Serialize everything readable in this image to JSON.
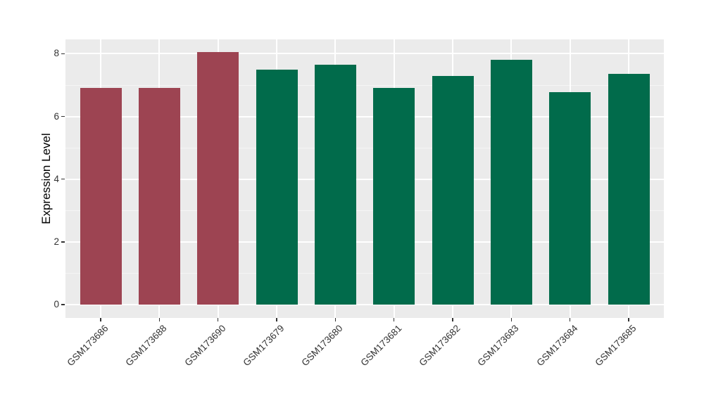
{
  "chart_data": {
    "type": "bar",
    "title": "",
    "xlabel": "",
    "ylabel": "Expression Level",
    "categories": [
      "GSM173686",
      "GSM173688",
      "GSM173690",
      "GSM173679",
      "GSM173680",
      "GSM173681",
      "GSM173682",
      "GSM173683",
      "GSM173684",
      "GSM173685"
    ],
    "values": [
      6.92,
      6.92,
      8.05,
      7.49,
      7.65,
      6.92,
      7.3,
      7.8,
      6.78,
      7.37
    ],
    "groups": [
      "groupA",
      "groupA",
      "groupA",
      "groupB",
      "groupB",
      "groupB",
      "groupB",
      "groupB",
      "groupB",
      "groupB"
    ],
    "group_colors": {
      "groupA": "#9d4452",
      "groupB": "#016b4b"
    },
    "yticks": [
      0,
      2,
      4,
      6,
      8
    ],
    "yticks_minor": [
      1,
      3,
      5,
      7
    ],
    "ylim": [
      -0.43,
      8.46
    ],
    "legend": "none",
    "grid": "on",
    "style": {
      "panel_bg": "#ebebeb",
      "grid_major_color": "#ffffff",
      "grid_minor_color": "#f5f5f5",
      "tick_color": "#333333",
      "axis_text_color": "#333333"
    }
  }
}
